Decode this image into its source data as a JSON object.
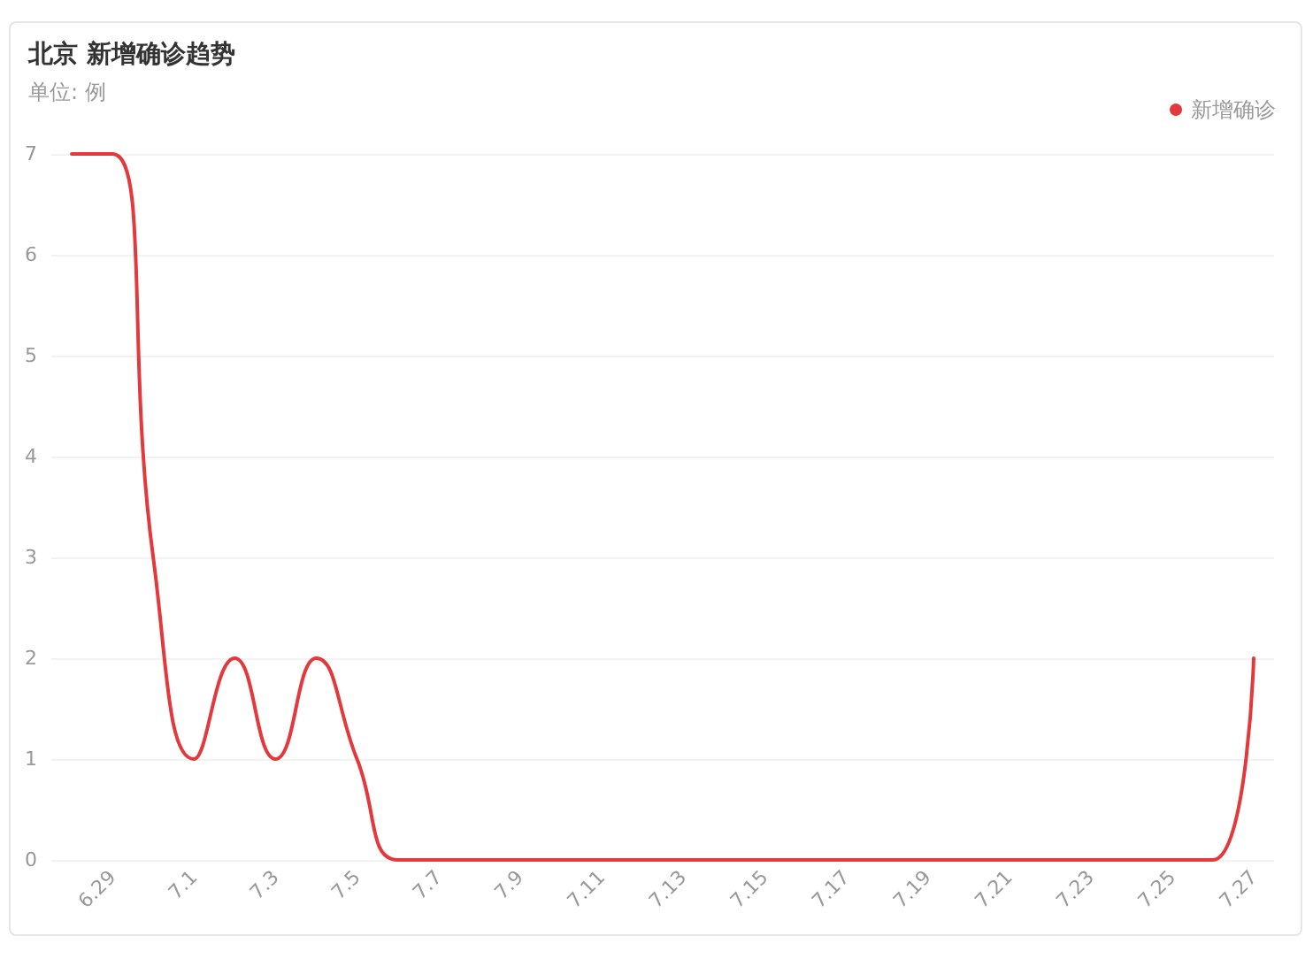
{
  "chart_data": {
    "type": "line",
    "title": "北京 新增确诊趋势",
    "subtitle": "单位: 例",
    "categories": [
      null,
      "6.29",
      null,
      "7.1",
      null,
      "7.3",
      null,
      "7.5",
      null,
      "7.7",
      null,
      "7.9",
      null,
      "7.11",
      null,
      "7.13",
      null,
      "7.15",
      null,
      "7.17",
      null,
      "7.19",
      null,
      "7.21",
      null,
      "7.23",
      null,
      "7.25",
      null,
      "7.27"
    ],
    "series": [
      {
        "name": "新增确诊",
        "color": "#e4393c",
        "values": [
          7,
          7,
          3,
          1,
          2,
          1,
          2,
          1,
          0,
          0,
          0,
          0,
          0,
          0,
          0,
          0,
          0,
          0,
          0,
          0,
          0,
          0,
          0,
          0,
          0,
          0,
          0,
          0,
          0,
          2
        ]
      }
    ],
    "ylim": [
      0,
      7
    ],
    "yticks": [
      0,
      1,
      2,
      3,
      4,
      5,
      6,
      7
    ],
    "grid": "y",
    "legend": "top right",
    "marker": "none",
    "line_style": "solid"
  }
}
